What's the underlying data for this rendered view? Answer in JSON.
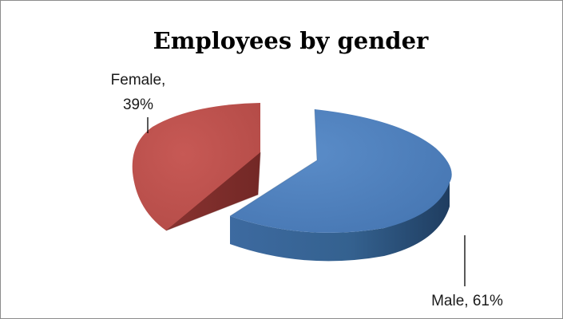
{
  "chart_data": {
    "type": "pie",
    "title": "Employees by gender",
    "legend": "none",
    "categories": [
      "Female",
      "Male"
    ],
    "values": [
      39,
      61
    ],
    "colors": [
      "#c0504d",
      "#4f81bd"
    ],
    "labels": [
      {
        "category": "Female,",
        "value": "39%"
      },
      {
        "category": "Male, 61%"
      }
    ]
  }
}
